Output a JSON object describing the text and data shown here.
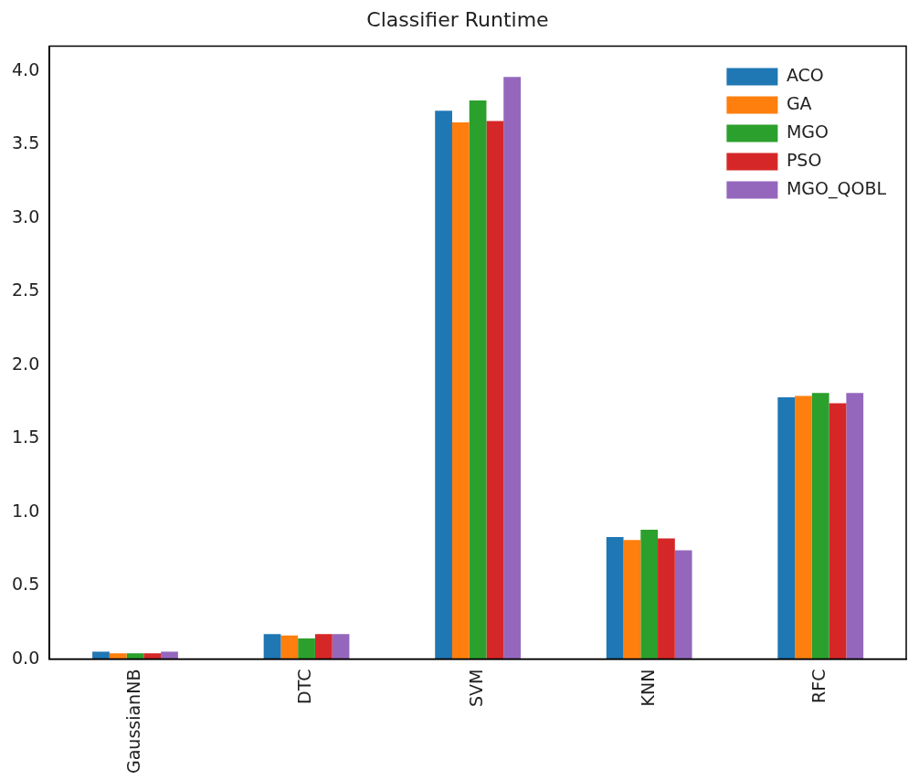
{
  "chart_data": {
    "type": "bar",
    "title": "Classifier Runtime",
    "categories": [
      "GaussianNB",
      "DTC",
      "SVM",
      "KNN",
      "RFC"
    ],
    "series": [
      {
        "name": "ACO",
        "color": "#1f77b4",
        "values": [
          0.05,
          0.17,
          3.73,
          0.83,
          1.78
        ]
      },
      {
        "name": "GA",
        "color": "#ff7f0e",
        "values": [
          0.04,
          0.16,
          3.65,
          0.81,
          1.79
        ]
      },
      {
        "name": "MGO",
        "color": "#2ca02c",
        "values": [
          0.04,
          0.14,
          3.8,
          0.88,
          1.81
        ]
      },
      {
        "name": "PSO",
        "color": "#d62728",
        "values": [
          0.04,
          0.17,
          3.66,
          0.82,
          1.74
        ]
      },
      {
        "name": "MGO_QOBL",
        "color": "#9467bd",
        "values": [
          0.05,
          0.17,
          3.96,
          0.74,
          1.81
        ]
      }
    ],
    "ylim": [
      0,
      4.17
    ],
    "yticks": [
      {
        "value": 0,
        "label": "0.0"
      },
      0.5,
      {
        "value": 1,
        "label": "1.0"
      },
      1.5,
      {
        "value": 2,
        "label": "2.0"
      },
      2.5,
      {
        "value": 3,
        "label": "3.0"
      },
      3.5,
      {
        "value": 4,
        "label": "4.0"
      }
    ],
    "legend": "top right"
  }
}
